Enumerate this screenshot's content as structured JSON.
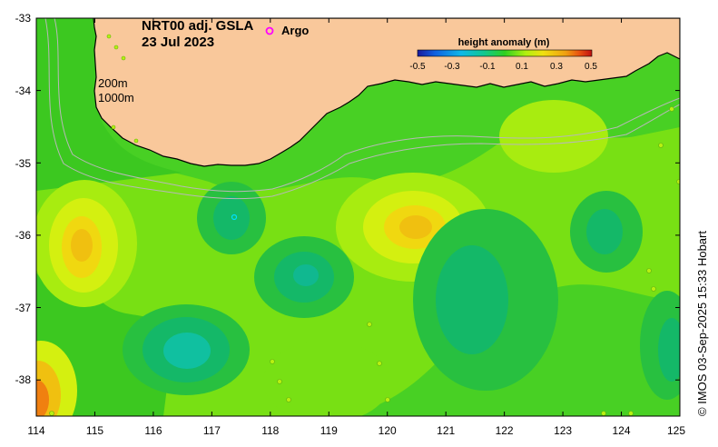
{
  "title": {
    "line1": "NRT00 adj. GSLA",
    "line2": "23 Jul 2023"
  },
  "legend": {
    "argo_symbol": "o",
    "argo_label": "Argo",
    "colorbar_title": "height anomaly (m)",
    "colorbar_ticks": [
      "-0.5",
      "-0.3",
      "-0.1",
      "0.1",
      "0.3",
      "0.5"
    ],
    "colorbar_colors": [
      "#1a1a9c",
      "#1060e0",
      "#10b8e8",
      "#10c8a0",
      "#18c060",
      "#30d020",
      "#70e010",
      "#c0f010",
      "#f0e010",
      "#f0a010",
      "#e85010",
      "#c01010"
    ]
  },
  "isobaths": {
    "shallow": "200m",
    "deep": "1000m"
  },
  "axes": {
    "x_ticks": [
      "114",
      "115",
      "116",
      "117",
      "118",
      "119",
      "120",
      "121",
      "122",
      "123",
      "124",
      "125"
    ],
    "y_ticks": [
      "-33",
      "-34",
      "-35",
      "-36",
      "-37",
      "-38"
    ],
    "lon_range": [
      114,
      125
    ],
    "lat_range": [
      -38.5,
      -33
    ]
  },
  "copyright": "© IMOS 03-Sep-2025 15:33 Hobart",
  "colors": {
    "land": "#f9c89b",
    "ocean_base": "#48d024",
    "argo": "#ff00ff"
  }
}
